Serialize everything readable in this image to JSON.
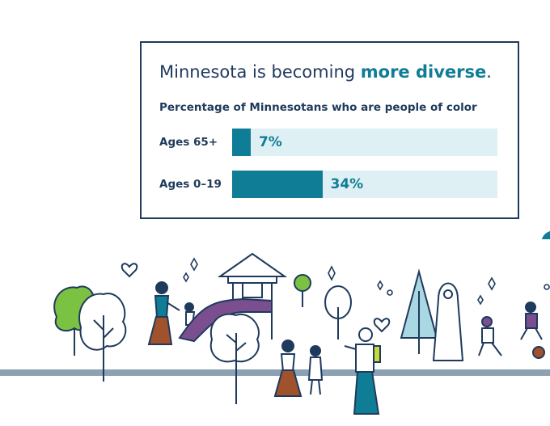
{
  "headline": {
    "text": "Minnesota is becoming ",
    "highlight": "more diverse",
    "end": "."
  },
  "chart_data": {
    "type": "bar",
    "orientation": "horizontal",
    "title": "Percentage of Minnesotans who are people of color",
    "categories": [
      "Ages 65+",
      "Ages 0–19"
    ],
    "values": [
      7,
      34
    ],
    "value_labels": [
      "7%",
      "34%"
    ],
    "xlim": [
      0,
      100
    ],
    "grid": false,
    "colors": {
      "fill": "#0f7d95",
      "track": "#dff0f4"
    }
  },
  "scene_icons": [
    "heart-icon",
    "sparkle-icon",
    "tree-icon",
    "pine-tree-icon",
    "slide-icon",
    "person-icon",
    "ball-icon"
  ]
}
